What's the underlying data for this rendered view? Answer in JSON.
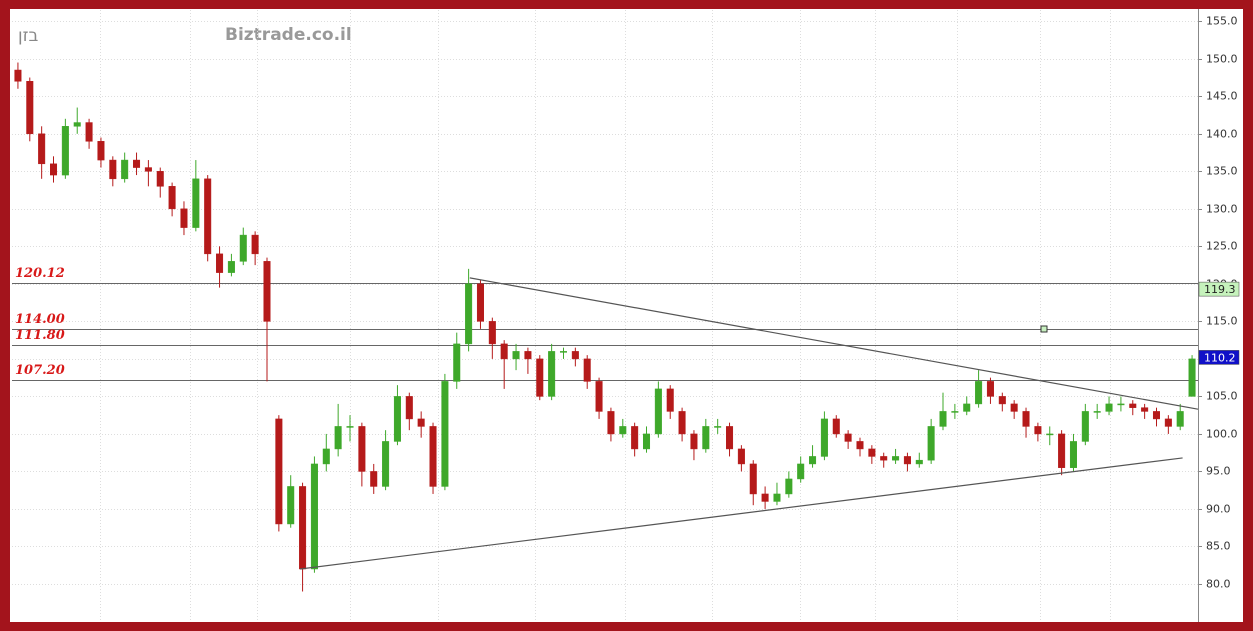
{
  "chart_data": {
    "type": "candlestick",
    "title": "בזן",
    "subtitle": "Biztrade.co.il",
    "ylim": [
      75.2,
      156.5
    ],
    "yticks": [
      {
        "value": 155,
        "label": "155.0"
      },
      {
        "value": 150,
        "label": "150.0"
      },
      {
        "value": 145,
        "label": "145.0"
      },
      {
        "value": 140,
        "label": "140.0"
      },
      {
        "value": 135,
        "label": "135.0"
      },
      {
        "value": 130,
        "label": "130.0"
      },
      {
        "value": 125,
        "label": "125.0"
      },
      {
        "value": 120,
        "label": "120.0"
      },
      {
        "value": 115,
        "label": "115.0"
      },
      {
        "value": 110,
        "label": "110.0"
      },
      {
        "value": 105,
        "label": "105.0"
      },
      {
        "value": 100,
        "label": "100.0"
      },
      {
        "value": 95,
        "label": "95.0"
      },
      {
        "value": 90,
        "label": "90.0"
      },
      {
        "value": 85,
        "label": "85.0"
      },
      {
        "value": 80,
        "label": "80.0"
      }
    ],
    "grid": true,
    "up_color": "#3ea82a",
    "down_color": "#b51a1a",
    "open": [
      148.5,
      147,
      140,
      136,
      134.5,
      141,
      141.5,
      139,
      136.5,
      134,
      136.5,
      135.5,
      135,
      133,
      130,
      127.5,
      134,
      124,
      121.5,
      123,
      126.5,
      123,
      102,
      88,
      93,
      82,
      96,
      98,
      101,
      101,
      95,
      93,
      99,
      105,
      102,
      101,
      93,
      107,
      112,
      120,
      115,
      112,
      110,
      111,
      110,
      105,
      111,
      111,
      110,
      107,
      103,
      100,
      101,
      98,
      100,
      106,
      103,
      100,
      98,
      101,
      101,
      98,
      96,
      92,
      91,
      92,
      94,
      96,
      97,
      102,
      100,
      99,
      98,
      97,
      96.5,
      97,
      96,
      96.5,
      101,
      103,
      103,
      104,
      107,
      105,
      104,
      103,
      101,
      100,
      100,
      95.5,
      99,
      103,
      103,
      104,
      104,
      103.5,
      103,
      102,
      101,
      105
    ],
    "high": [
      149.5,
      147.5,
      141,
      137,
      142,
      143.5,
      142,
      139.5,
      137,
      137.5,
      137.5,
      136.5,
      135.5,
      133.5,
      131,
      136.5,
      134.5,
      125,
      124,
      127.5,
      127,
      123.5,
      102.5,
      94.5,
      93.5,
      97,
      100,
      104,
      102.5,
      101.5,
      96,
      100.5,
      106.5,
      105.5,
      103,
      101.5,
      108,
      113.5,
      122,
      120.5,
      115.5,
      112.5,
      112,
      111.5,
      110.5,
      112,
      111.5,
      111.5,
      110.5,
      107.5,
      103.5,
      102,
      101.5,
      101,
      107,
      106.5,
      103.5,
      100.5,
      102,
      102,
      101.5,
      98.5,
      96.5,
      93,
      93.5,
      95,
      97,
      98.5,
      103,
      102.5,
      100.5,
      99.5,
      98.5,
      97.5,
      98,
      97.5,
      97.5,
      102,
      105.5,
      104,
      105,
      108.5,
      107.5,
      105.5,
      104.5,
      103.5,
      101.5,
      101,
      100.5,
      100,
      104,
      104,
      105,
      105,
      104.5,
      104,
      103.5,
      102.5,
      104,
      110.5
    ],
    "low": [
      146,
      139,
      134,
      133.5,
      134,
      140,
      138,
      135.5,
      133,
      133.5,
      134.5,
      133,
      131.5,
      129,
      126.5,
      127,
      123,
      119.5,
      121,
      122.5,
      122.5,
      107,
      87,
      87.5,
      79,
      81.5,
      95,
      97,
      99,
      93,
      92,
      92.5,
      98.5,
      100.5,
      99.5,
      92,
      92.5,
      106,
      111,
      114,
      110,
      106,
      108.5,
      108,
      104.5,
      104.5,
      110,
      109,
      106,
      102,
      99,
      99.5,
      97,
      97.5,
      99.5,
      102,
      99,
      96.5,
      97.5,
      100,
      97,
      95,
      90.5,
      90,
      90.5,
      91.5,
      93.5,
      95.5,
      96.5,
      99.5,
      98,
      97,
      96,
      95.5,
      96,
      95,
      95.5,
      96,
      100.5,
      102,
      102.5,
      103.5,
      104,
      103,
      102,
      99.5,
      99,
      98.5,
      94.5,
      95,
      98.5,
      102,
      102.5,
      103,
      102.5,
      102,
      101,
      100,
      100.5,
      105
    ],
    "close": [
      147,
      140,
      136,
      134.5,
      141,
      141.5,
      139,
      136.5,
      134,
      136.5,
      135.5,
      135,
      133,
      130,
      127.5,
      134,
      124,
      121.5,
      123,
      126.5,
      124,
      115,
      88,
      93,
      82,
      96,
      98,
      101,
      101,
      95,
      93,
      99,
      105,
      102,
      101,
      93,
      107,
      112,
      120,
      115,
      112,
      110,
      111,
      110,
      105,
      111,
      111,
      110,
      107,
      103,
      100,
      101,
      98,
      100,
      106,
      103,
      100,
      98,
      101,
      101,
      98,
      96,
      92,
      91,
      92,
      94,
      96,
      97,
      102,
      100,
      99,
      98,
      97,
      96.5,
      97,
      96,
      96.5,
      101,
      103,
      103,
      104,
      107,
      105,
      104,
      103,
      101,
      100,
      100,
      95.5,
      99,
      103,
      103,
      104,
      104,
      103.5,
      103,
      102,
      101,
      103,
      110
    ],
    "levels": [
      {
        "value": 120.12,
        "label": "120.12"
      },
      {
        "value": 114,
        "label": "114.00"
      },
      {
        "value": 111.8,
        "label": "111.80"
      },
      {
        "value": 107.2,
        "label": "107.20"
      }
    ],
    "trendlines": [
      {
        "x": [
          38.1,
          99.5
        ],
        "y": [
          120.8,
          103.3
        ]
      },
      {
        "x": [
          23.8,
          98.2
        ],
        "y": [
          82,
          96.8
        ]
      }
    ],
    "price_tags": [
      {
        "value": 119.3,
        "color": "#c6f2bc"
      },
      {
        "value": 110.2,
        "color": "#1010c8"
      }
    ]
  }
}
